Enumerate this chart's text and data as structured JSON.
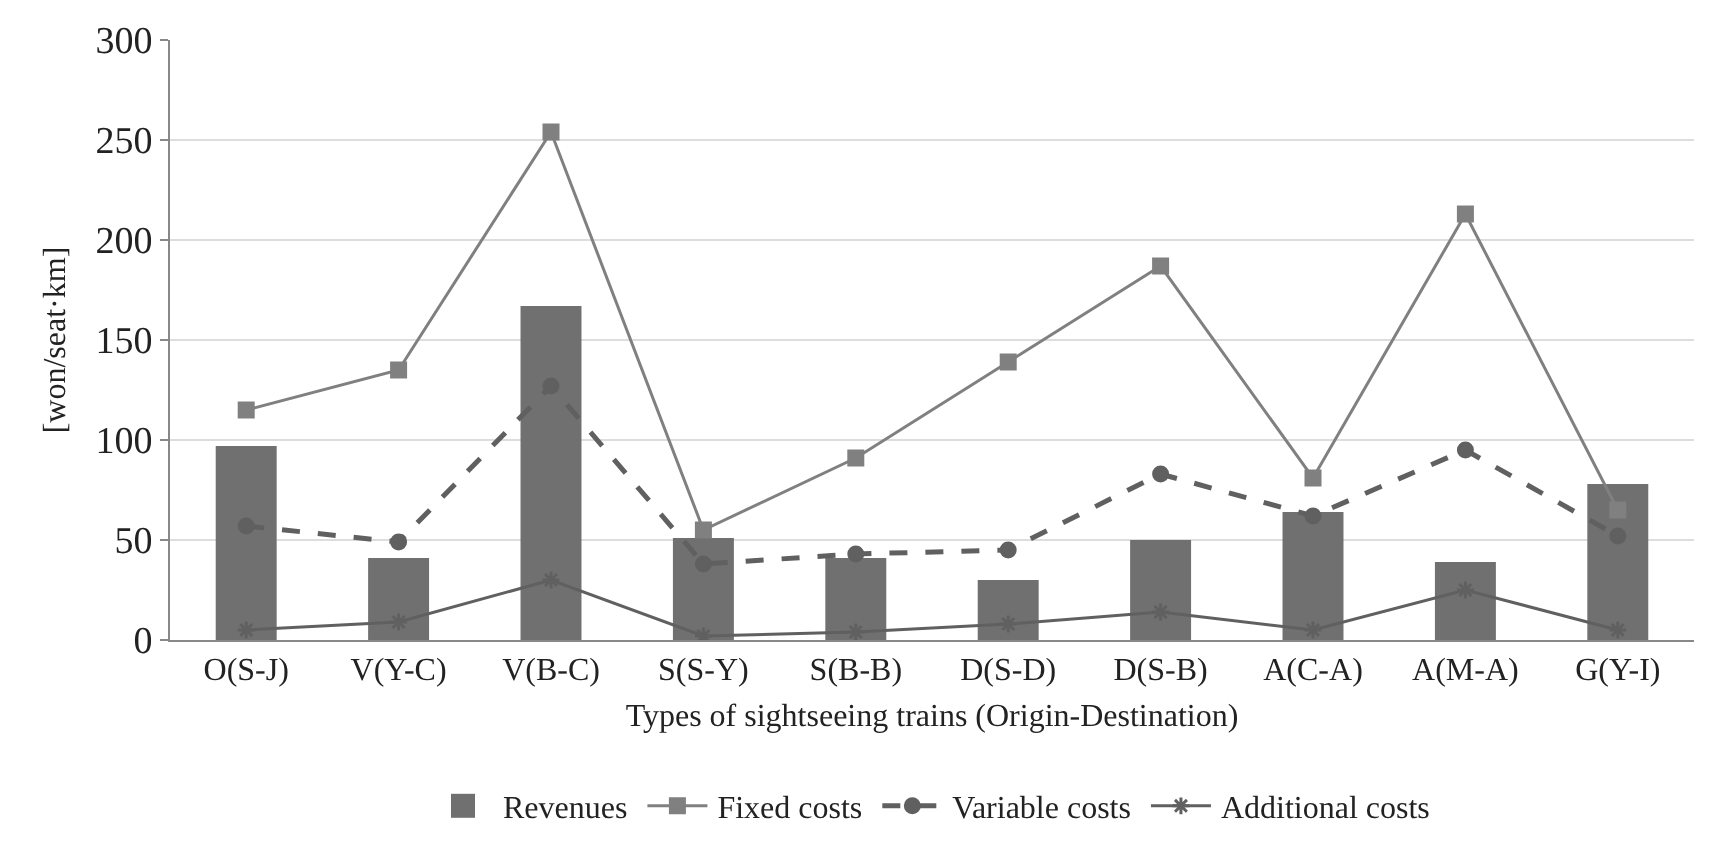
{
  "chart_data": {
    "type": "bar",
    "xlabel": "Types of sightseeing trains (Origin-Destination)",
    "ylabel": "[won/seat·km]",
    "categories": [
      "O(S-J)",
      "V(Y-C)",
      "V(B-C)",
      "S(S-Y)",
      "S(B-B)",
      "D(S-D)",
      "D(S-B)",
      "A(C-A)",
      "A(M-A)",
      "G(Y-I)"
    ],
    "ylim": [
      0,
      300
    ],
    "yticks": [
      0,
      50,
      100,
      150,
      200,
      250,
      300
    ],
    "grid": "y",
    "legend": "bottom",
    "series": [
      {
        "name": "Revenues",
        "color": "#707070",
        "values": [
          97,
          41,
          167,
          51,
          41,
          30,
          50,
          64,
          39,
          78
        ]
      },
      {
        "name": "Fixed costs",
        "type": "line",
        "color": "#808080",
        "marker": "square",
        "line_style": "solid",
        "values": [
          115,
          135,
          254,
          55,
          91,
          139,
          187,
          81,
          213,
          65
        ]
      },
      {
        "name": "Variable costs",
        "type": "line",
        "color": "#606060",
        "marker": "circle",
        "line_style": "dashed",
        "values": [
          57,
          49,
          127,
          38,
          43,
          45,
          83,
          62,
          95,
          52
        ]
      },
      {
        "name": "Additional costs",
        "type": "line",
        "color": "#606060",
        "marker": "cross",
        "line_style": "solid",
        "values": [
          5,
          9,
          30,
          2,
          4,
          8,
          14,
          5,
          25,
          5
        ]
      }
    ]
  }
}
